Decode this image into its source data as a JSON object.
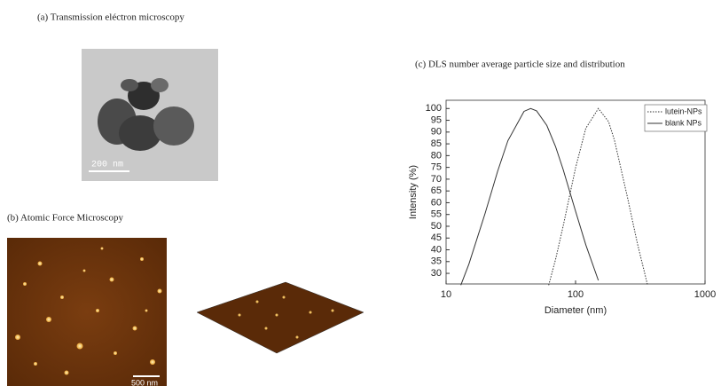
{
  "panels": {
    "tem": {
      "caption": "(a) Transmission eléctron microscopy",
      "scale_bar": "200 nm"
    },
    "afm": {
      "caption": "(b) Atomic Force Microscopy",
      "scale_bar": "500 nm"
    }
  },
  "chart_data": {
    "type": "line",
    "title": "(c) DLS number average particle size and distribution",
    "x_label": "Diameter (nm)",
    "y_label": "Intensity (%)",
    "xscale": "log",
    "xlim": [
      10,
      1000
    ],
    "xticks": [
      10,
      100,
      1000
    ],
    "ylim": [
      25.5,
      103.5
    ],
    "yticks": [
      30,
      35,
      40,
      45,
      50,
      55,
      60,
      65,
      70,
      75,
      80,
      85,
      90,
      95,
      100
    ],
    "legend": "top-right",
    "series": [
      {
        "name": "lutein-NPs",
        "color": "#333333",
        "line_style": "dotted",
        "x": [
          62,
          70,
          80,
          100,
          120,
          150,
          180,
          200,
          250,
          300,
          360
        ],
        "values": [
          25,
          35.8,
          49.8,
          74.8,
          91.6,
          100,
          94.4,
          86.4,
          63,
          42.8,
          25
        ]
      },
      {
        "name": "blank NPs",
        "color": "#333333",
        "line_style": "solid",
        "x": [
          13,
          15,
          20,
          25,
          30,
          40,
          45,
          50,
          60,
          70,
          80,
          100,
          120,
          150
        ],
        "values": [
          25,
          33.9,
          55.4,
          73.3,
          86.3,
          98.8,
          100,
          99,
          92.8,
          83.9,
          74.3,
          56.4,
          42.1,
          27
        ]
      }
    ]
  }
}
